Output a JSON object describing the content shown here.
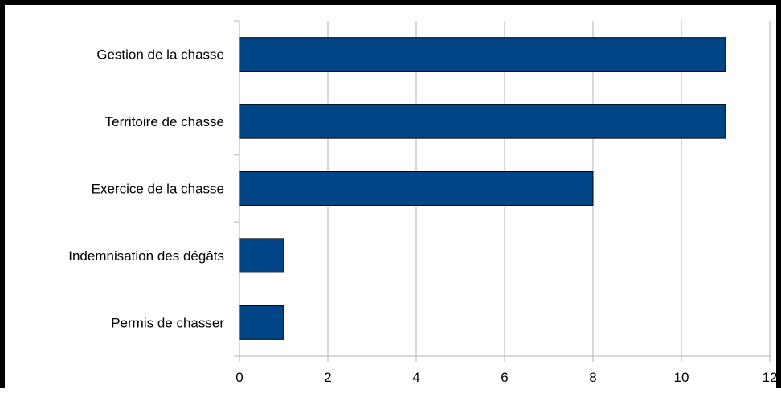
{
  "chart_data": {
    "type": "bar",
    "orientation": "horizontal",
    "categories": [
      "Gestion de la chasse",
      "Territoire de chasse",
      "Exercice de la chasse",
      "Indemnisation des dégâts",
      "Permis de chasser"
    ],
    "values": [
      11,
      11,
      8,
      1,
      1
    ],
    "xlim": [
      0,
      12
    ],
    "x_ticks": [
      "0",
      "2",
      "4",
      "6",
      "8",
      "10",
      "12"
    ],
    "grid": "vertical",
    "legend": "none",
    "colors": {
      "bar": "#004586",
      "bar_stroke": "#000000",
      "grid": "#b3b3b3",
      "axis": "#b3b3b3",
      "frame": "#000000"
    }
  }
}
